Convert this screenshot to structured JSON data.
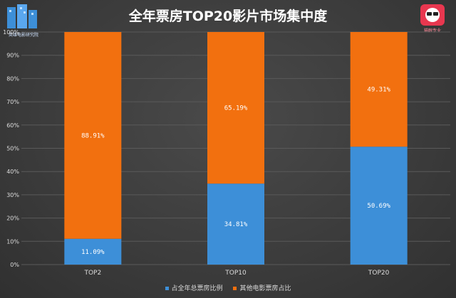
{
  "chart_data": {
    "type": "bar",
    "stacked": true,
    "title": "全年票房TOP20影片市场集中度",
    "categories": [
      "TOP2",
      "TOP10",
      "TOP20"
    ],
    "series": [
      {
        "name": "占全年总票房比例",
        "values": [
          11.09,
          34.81,
          50.69
        ],
        "labels": [
          "11.09%",
          "34.81%",
          "50.69%"
        ],
        "color": "#3d8fd8"
      },
      {
        "name": "其他电影票房占比",
        "values": [
          88.91,
          65.19,
          49.31
        ],
        "labels": [
          "88.91%",
          "65.19%",
          "49.31%"
        ],
        "color": "#f2700f"
      }
    ],
    "ylim": [
      0,
      100
    ],
    "yticks": [
      "0%",
      "10%",
      "20%",
      "30%",
      "40%",
      "50%",
      "60%",
      "70%",
      "80%",
      "90%",
      "100%"
    ],
    "grid": true,
    "legend_position": "bottom"
  },
  "logos": {
    "left_caption": "英雄电影研究院",
    "right_caption": "猫眼专业"
  },
  "colors": {
    "background": "#3a3a3a",
    "grid": "#5a5a5a",
    "text": "#dddddd"
  }
}
